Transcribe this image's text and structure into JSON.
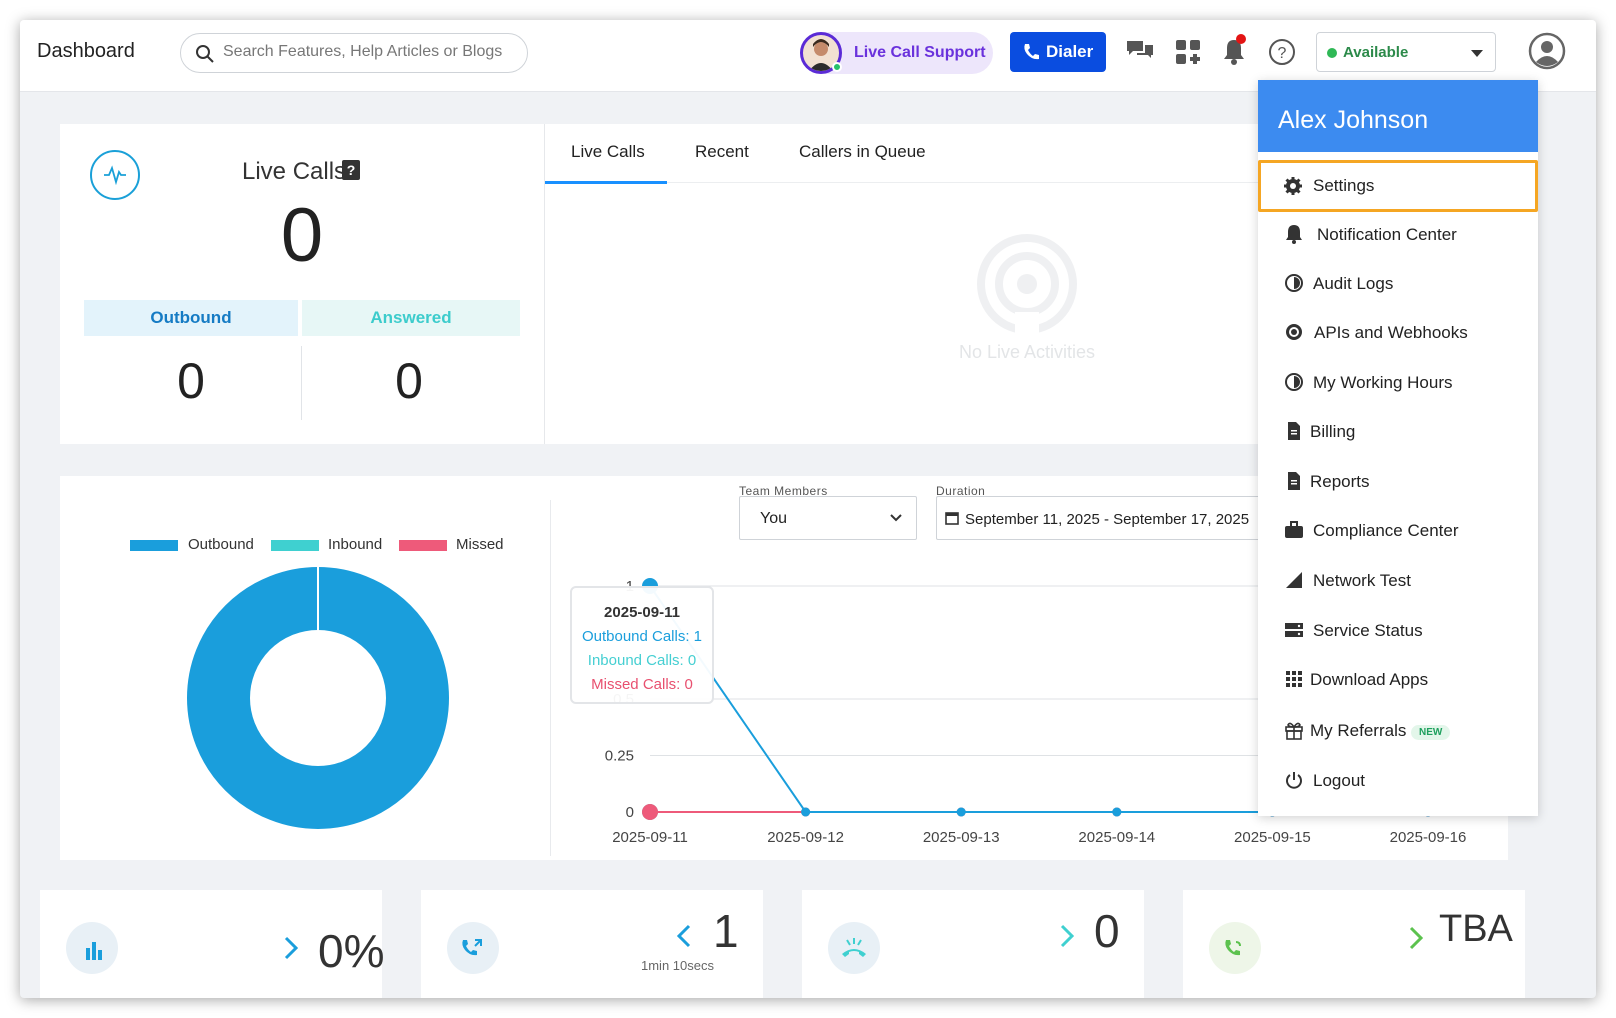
{
  "header": {
    "title": "Dashboard",
    "search_placeholder": "Search Features, Help Articles or Blogs",
    "live_call_support": "Live Call Support",
    "dialer": "Dialer",
    "status": "Available",
    "status_color": "#2fb856",
    "accent_color": "#0a4de0"
  },
  "live_calls": {
    "title": "Live Calls",
    "help": "?",
    "count": "0",
    "outbound_label": "Outbound",
    "answered_label": "Answered",
    "outbound_count": "0",
    "answered_count": "0"
  },
  "activity": {
    "tabs": [
      "Live Calls",
      "Recent",
      "Callers in Queue"
    ],
    "active_tab": "Live Calls",
    "empty_text": "No Live Activities"
  },
  "filters": {
    "team_label": "Team Members",
    "team_value": "You",
    "duration_label": "Duration",
    "duration_value": "September 11, 2025 - September 17, 2025"
  },
  "tooltip": {
    "date": "2025-09-11",
    "outbound": "Outbound Calls: 1",
    "inbound": "Inbound Calls: 0",
    "missed": "Missed Calls: 0"
  },
  "chart_data": [
    {
      "type": "pie",
      "labels": [
        "Outbound",
        "Inbound",
        "Missed"
      ],
      "values": [
        1,
        0,
        0
      ],
      "colors": [
        "#1a9edc",
        "#3fd0d0",
        "#ee5a7a"
      ],
      "legend": "top"
    },
    {
      "type": "line",
      "x": [
        "2025-09-11",
        "2025-09-12",
        "2025-09-13",
        "2025-09-14",
        "2025-09-15",
        "2025-09-16"
      ],
      "series": [
        {
          "name": "Outbound",
          "values": [
            1,
            0,
            0,
            0,
            0,
            0
          ],
          "color": "#1a9edc"
        },
        {
          "name": "Inbound",
          "values": [
            0,
            0,
            0,
            0,
            0,
            0
          ],
          "color": "#3fd0d0"
        },
        {
          "name": "Missed",
          "values": [
            0,
            0,
            0,
            0,
            0,
            0
          ],
          "color": "#ee5a7a"
        }
      ],
      "yticks": [
        "0",
        "0.25",
        "0.5",
        "1"
      ],
      "ylim": [
        0,
        1
      ],
      "grid": true
    }
  ],
  "stats": [
    {
      "value": "0%",
      "arrow": "right",
      "sub": ""
    },
    {
      "value": "1",
      "arrow": "left",
      "sub": "1min 10secs"
    },
    {
      "value": "0",
      "arrow": "right",
      "sub": ""
    },
    {
      "value": "TBA",
      "arrow": "right",
      "sub": ""
    }
  ],
  "menu": {
    "user_name": "Alex Johnson",
    "items": [
      {
        "label": "Settings",
        "icon": "gear-icon"
      },
      {
        "label": "Notification Center",
        "icon": "bell-icon"
      },
      {
        "label": "Audit Logs",
        "icon": "clock-icon"
      },
      {
        "label": "APIs and Webhooks",
        "icon": "cog-icon"
      },
      {
        "label": "My Working Hours",
        "icon": "clock-icon"
      },
      {
        "label": "Billing",
        "icon": "document-icon"
      },
      {
        "label": "Reports",
        "icon": "document-icon"
      },
      {
        "label": "Compliance Center",
        "icon": "briefcase-icon"
      },
      {
        "label": "Network Test",
        "icon": "signal-icon"
      },
      {
        "label": "Service Status",
        "icon": "server-icon"
      },
      {
        "label": "Download Apps",
        "icon": "grid-icon"
      },
      {
        "label": "My Referrals",
        "icon": "gift-icon",
        "badge": "NEW"
      },
      {
        "label": "Logout",
        "icon": "power-icon"
      }
    ],
    "highlight_color": "#f5a623",
    "header_color": "#3c8bf0"
  }
}
